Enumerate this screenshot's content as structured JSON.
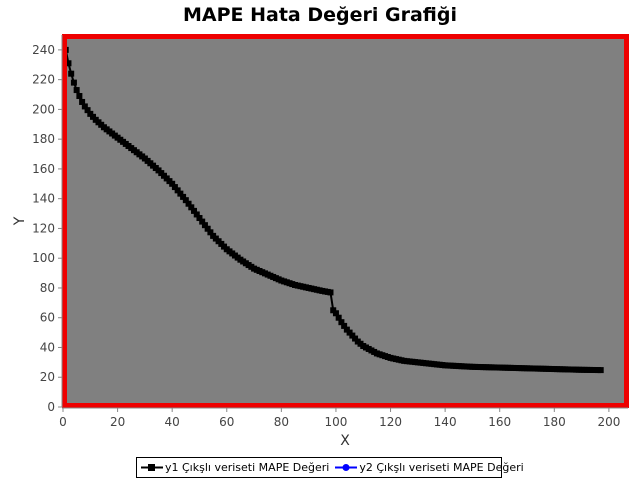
{
  "chart_data": {
    "type": "line",
    "title": "MAPE Hata Değeri Grafiği",
    "xlabel": "X",
    "ylabel": "Y",
    "xlim": [
      0,
      207
    ],
    "ylim": [
      0,
      250
    ],
    "xticks": [
      0,
      20,
      40,
      60,
      80,
      100,
      120,
      140,
      160,
      180,
      200
    ],
    "yticks": [
      0,
      20,
      40,
      60,
      80,
      100,
      120,
      140,
      160,
      180,
      200,
      220,
      240
    ],
    "grid": false,
    "legend_position": "bottom",
    "plot_background": "#808080",
    "plot_border_color": "#ee0000",
    "series": [
      {
        "name": "y1 Çıkşlı veriseti MAPE Değeri",
        "color": "#000000",
        "marker": "square",
        "x": [
          1,
          2,
          3,
          4,
          5,
          6,
          7,
          8,
          10,
          12,
          15,
          20,
          25,
          30,
          35,
          40,
          45,
          50,
          55,
          60,
          65,
          70,
          75,
          80,
          85,
          90,
          95,
          98,
          99,
          100,
          102,
          104,
          106,
          108,
          110,
          115,
          120,
          125,
          130,
          140,
          150,
          160,
          170,
          180,
          190,
          197
        ],
        "y": [
          240,
          231,
          224,
          218,
          213,
          209,
          205,
          202,
          197,
          193,
          188,
          181,
          174,
          167,
          159,
          150,
          139,
          127,
          115,
          106,
          99,
          93,
          89,
          85,
          82,
          80,
          78,
          77,
          65,
          63,
          57,
          52,
          48,
          44,
          41,
          36,
          33,
          31,
          30,
          28,
          27,
          26.5,
          26,
          25.5,
          25,
          24.8
        ]
      },
      {
        "name": "y2 Çıkşlı veriseti MAPE Değeri",
        "color": "#0000ff",
        "marker": "circle",
        "x": [],
        "y": []
      }
    ]
  }
}
